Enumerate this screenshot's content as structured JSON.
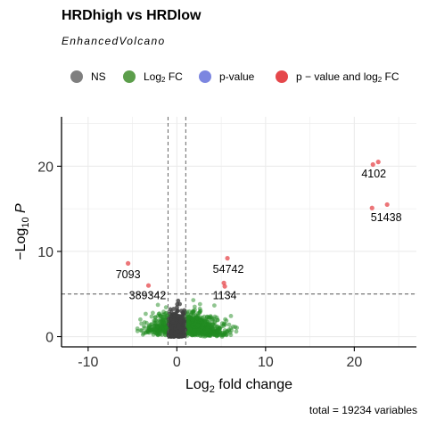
{
  "chart_data": {
    "type": "scatter",
    "title": "HRDhigh vs HRDlow",
    "subtitle": "EnhancedVolcano",
    "caption": "total = 19234 variables",
    "xlabel": {
      "pre": "Log",
      "sub": "2",
      "post": " fold change"
    },
    "ylabel": {
      "pre": "−Log",
      "sub": "10",
      "post": " P"
    },
    "xlim": [
      -13,
      27
    ],
    "ylim": [
      -1.2,
      25.8
    ],
    "xticks": [
      -10,
      0,
      10,
      20
    ],
    "yticks": [
      0,
      10,
      20
    ],
    "xtick_labels": [
      "-10",
      "0",
      "10",
      "20"
    ],
    "ytick_labels": [
      "0",
      "10",
      "20"
    ],
    "grid": true,
    "legend_position": "top",
    "fc_cutoff": 1,
    "p_cutoff_log10": 5,
    "legend": [
      {
        "key": "ns",
        "color": "#7f7f7f",
        "parts": [
          {
            "t": "NS"
          }
        ]
      },
      {
        "key": "fc",
        "color": "#5c9e4b",
        "parts": [
          {
            "t": "Log"
          },
          {
            "sub": "2"
          },
          {
            "t": " FC"
          }
        ]
      },
      {
        "key": "p",
        "color": "#7c86e0",
        "parts": [
          {
            "t": "p-value"
          }
        ]
      },
      {
        "key": "both",
        "color": "#e5474b",
        "parts": [
          {
            "t": "p − value and log"
          },
          {
            "sub": "2"
          },
          {
            "t": " FC"
          }
        ]
      }
    ],
    "colors": {
      "ns": "#404040",
      "fc": "#228b22",
      "both": "#e5474b"
    },
    "cloud": {
      "n_total": 19234,
      "n_drawn": 1500
    },
    "highlighted_points": [
      {
        "x": 22.1,
        "y": 20.2
      },
      {
        "x": 22.7,
        "y": 20.5
      },
      {
        "x": 22.0,
        "y": 15.1
      },
      {
        "x": 23.7,
        "y": 15.5
      },
      {
        "x": -5.5,
        "y": 8.6
      },
      {
        "x": 5.7,
        "y": 9.2
      },
      {
        "x": 5.3,
        "y": 6.3
      },
      {
        "x": 5.4,
        "y": 5.9
      },
      {
        "x": -3.2,
        "y": 6.0
      }
    ],
    "annotations": [
      {
        "label": "4102",
        "x": 22.2,
        "y": 19.1
      },
      {
        "label": "51438",
        "x": 23.6,
        "y": 14.0
      },
      {
        "label": "7093",
        "x": -5.5,
        "y": 7.3
      },
      {
        "label": "54742",
        "x": 5.8,
        "y": 7.9
      },
      {
        "label": "389342",
        "x": -3.3,
        "y": 4.8
      },
      {
        "label": "1134",
        "x": 5.4,
        "y": 4.8
      }
    ]
  }
}
